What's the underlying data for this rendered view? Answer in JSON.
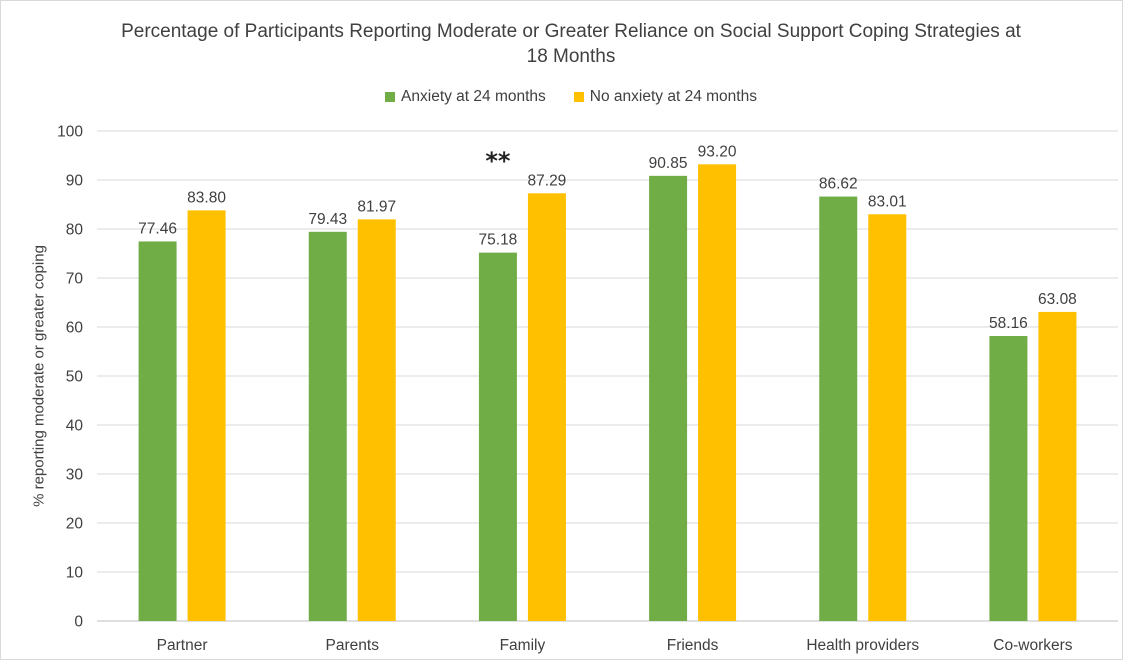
{
  "chart_data": {
    "type": "bar",
    "title_lines": [
      "Percentage of Participants Reporting Moderate or Greater Reliance on Social Support Coping Strategies at",
      "18 Months"
    ],
    "ylabel": "% reporting moderate or greater coping",
    "xlabel": "",
    "ylim": [
      0,
      100
    ],
    "yticks": [
      0,
      10,
      20,
      30,
      40,
      50,
      60,
      70,
      80,
      90,
      100
    ],
    "grid": true,
    "legend_position": "top-center",
    "categories": [
      "Partner",
      "Parents",
      "Family",
      "Friends",
      "Health providers",
      "Co-workers"
    ],
    "series": [
      {
        "name": "Anxiety at 24 months",
        "color": "#70ad47",
        "values": [
          77.46,
          79.43,
          75.18,
          90.85,
          86.62,
          58.16
        ],
        "labels": [
          "77.46",
          "79.43",
          "75.18",
          "90.85",
          "86.62",
          "58.16"
        ]
      },
      {
        "name": "No anxiety at 24 months",
        "color": "#ffc000",
        "values": [
          83.8,
          81.97,
          87.29,
          93.2,
          83.01,
          63.08
        ],
        "labels": [
          "83.80",
          "81.97",
          "87.29",
          "93.20",
          "83.01",
          "63.08"
        ]
      }
    ],
    "annotations": [
      {
        "category": "Family",
        "text": "**"
      }
    ]
  }
}
